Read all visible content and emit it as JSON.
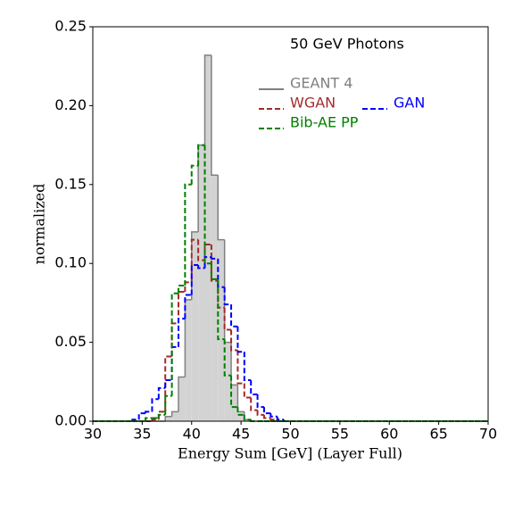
{
  "chart_data": {
    "type": "histogram",
    "title": "50 GeV Photons",
    "x_label": "Energy Sum [GeV] (Layer Full)",
    "y_label": "normalized",
    "bins": [
      30,
      30.667,
      31.333,
      32,
      32.667,
      33.333,
      34,
      34.667,
      35.333,
      36,
      36.667,
      37.333,
      38,
      38.667,
      39.333,
      40,
      40.667,
      41.333,
      42,
      42.667,
      43.333,
      44,
      44.667,
      45.333,
      46,
      46.667,
      47.333,
      48,
      48.667,
      49.333,
      50,
      50.667,
      51.333,
      52,
      52.667,
      53.333,
      54,
      54.667,
      55.333,
      56,
      56.667,
      57.333,
      58,
      58.667,
      59.333,
      60,
      60.667,
      61.333,
      62,
      62.667,
      63.333,
      64,
      64.667,
      65.333,
      66,
      66.667,
      67.333,
      68,
      68.667,
      69.333,
      70
    ],
    "series": [
      {
        "name": "GEANT 4",
        "color": "#808080",
        "fill": "#d3d3d3",
        "dashed": false,
        "values": [
          0,
          0,
          0,
          0,
          0,
          0,
          0,
          0,
          0,
          0,
          0,
          0.003,
          0.006,
          0.028,
          0.077,
          0.12,
          0.175,
          0.232,
          0.156,
          0.115,
          0.05,
          0.023,
          0.006,
          0.001,
          0,
          0,
          0,
          0,
          0,
          0,
          0,
          0,
          0,
          0,
          0,
          0,
          0,
          0,
          0,
          0,
          0,
          0,
          0,
          0,
          0,
          0,
          0,
          0,
          0,
          0,
          0,
          0,
          0,
          0,
          0,
          0,
          0,
          0,
          0,
          0
        ]
      },
      {
        "name": "WGAN",
        "color": "#a52a2a",
        "dashed": true,
        "values": [
          0,
          0,
          0,
          0,
          0,
          0,
          0,
          0,
          0,
          0.001,
          0.006,
          0.041,
          0.062,
          0.082,
          0.088,
          0.115,
          0.102,
          0.112,
          0.089,
          0.072,
          0.058,
          0.045,
          0.024,
          0.015,
          0.007,
          0.004,
          0.002,
          0.001,
          0,
          0,
          0,
          0,
          0,
          0,
          0,
          0,
          0,
          0,
          0,
          0,
          0,
          0,
          0,
          0,
          0,
          0,
          0,
          0,
          0,
          0,
          0,
          0,
          0,
          0,
          0,
          0,
          0,
          0,
          0,
          0
        ]
      },
      {
        "name": "GAN",
        "color": "#0000ff",
        "dashed": true,
        "values": [
          0,
          0,
          0,
          0,
          0,
          0,
          0.001,
          0.005,
          0.006,
          0.014,
          0.021,
          0.026,
          0.047,
          0.065,
          0.08,
          0.099,
          0.097,
          0.104,
          0.103,
          0.085,
          0.074,
          0.06,
          0.044,
          0.026,
          0.017,
          0.009,
          0.005,
          0.003,
          0.001,
          0,
          0,
          0,
          0,
          0,
          0,
          0,
          0,
          0,
          0,
          0,
          0,
          0,
          0,
          0,
          0,
          0,
          0,
          0,
          0,
          0,
          0,
          0,
          0,
          0,
          0,
          0,
          0,
          0,
          0,
          0
        ]
      },
      {
        "name": "Bib-AE PP",
        "color": "#008000",
        "dashed": true,
        "values": [
          0,
          0,
          0,
          0,
          0,
          0,
          0,
          0,
          0.002,
          0.002,
          0.004,
          0.016,
          0.081,
          0.086,
          0.15,
          0.162,
          0.175,
          0.1,
          0.09,
          0.052,
          0.029,
          0.009,
          0.004,
          0.001,
          0,
          0,
          0,
          0,
          0,
          0,
          0,
          0,
          0,
          0,
          0,
          0,
          0,
          0,
          0,
          0,
          0,
          0,
          0,
          0,
          0,
          0,
          0,
          0,
          0,
          0,
          0,
          0,
          0,
          0,
          0,
          0,
          0,
          0,
          0,
          0
        ]
      }
    ],
    "xlim": [
      30,
      70
    ],
    "ylim": [
      0,
      0.25
    ],
    "xticks": [
      30,
      35,
      40,
      45,
      50,
      55,
      60,
      65,
      70
    ],
    "yticks": [
      {
        "value": 0,
        "label": "0.00"
      },
      {
        "value": 0.05,
        "label": "0.05"
      },
      {
        "value": 0.1,
        "label": "0.10"
      },
      {
        "value": 0.15,
        "label": "0.15"
      },
      {
        "value": 0.2,
        "label": "0.20"
      },
      {
        "value": 0.25,
        "label": "0.25"
      }
    ],
    "grid": false
  }
}
